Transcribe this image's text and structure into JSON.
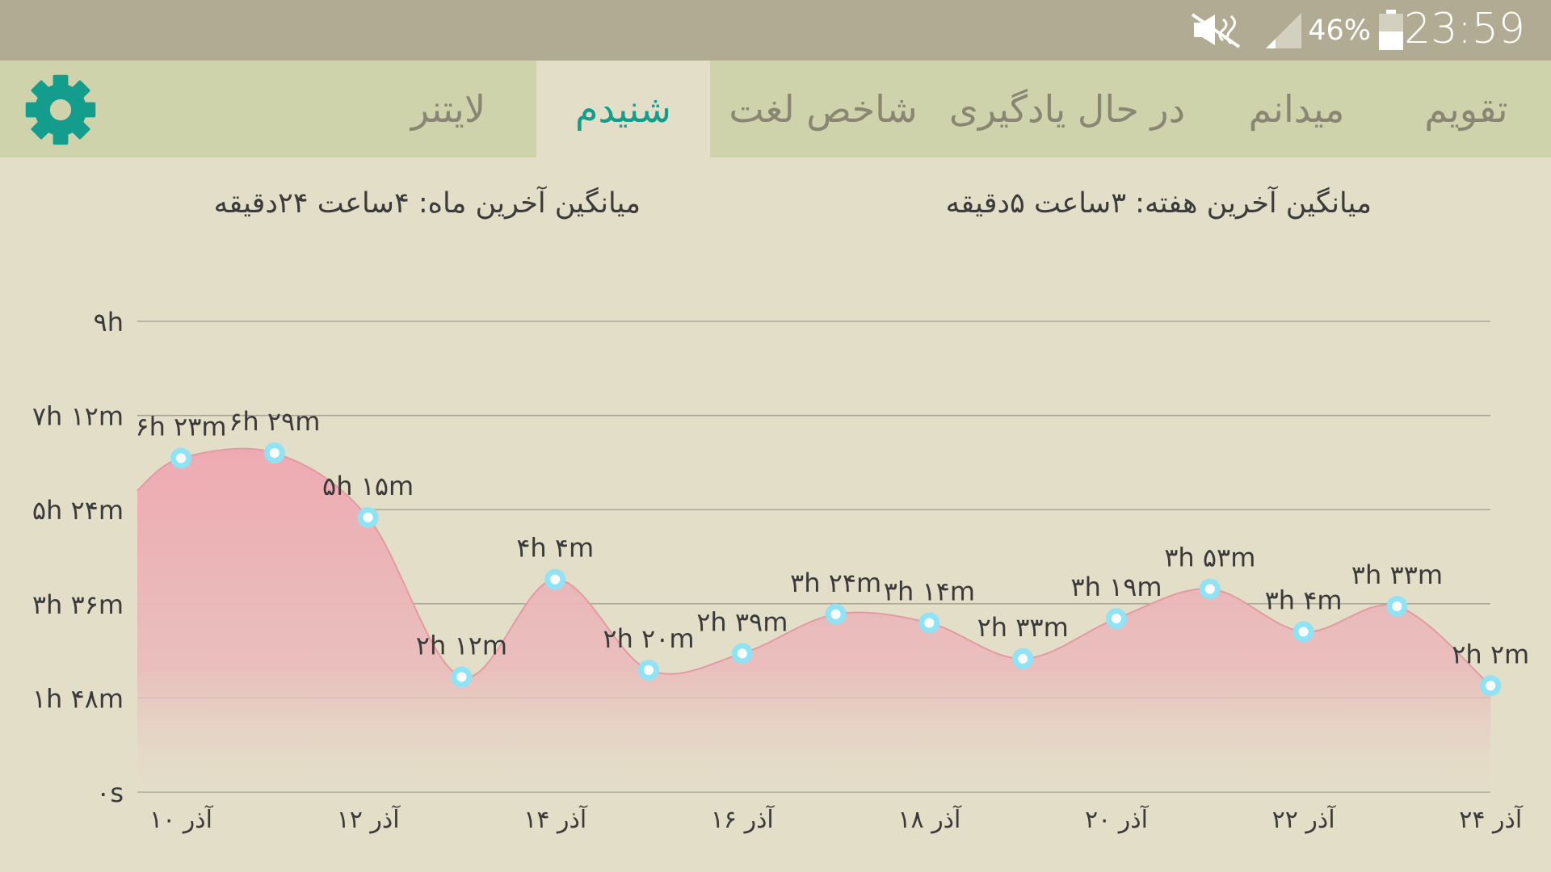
{
  "status_bar": {
    "time": "23:59",
    "battery_percent": "46%",
    "icons": [
      "mute-icon",
      "signal-icon",
      "battery-icon"
    ]
  },
  "tabs": [
    {
      "label": "تقویم",
      "active": false
    },
    {
      "label": "میدانم",
      "active": false
    },
    {
      "label": "در حال یادگیری",
      "active": false
    },
    {
      "label": "شاخص لغت",
      "active": false
    },
    {
      "label": "شنیدم",
      "active": true
    },
    {
      "label": "لایتنر",
      "active": false
    }
  ],
  "settings_icon": "gear-icon",
  "summary": {
    "week_average": "میانگین آخرین هفته: ۳ساعت ۵دقیقه",
    "month_average": "میانگین آخرین ماه: ۴ساعت ۲۴دقیقه"
  },
  "colors": {
    "accent": "#149c8c",
    "area_fill": "#eeaab2",
    "point_ring": "#8fe3f5"
  },
  "chart_data": {
    "type": "area",
    "y_ticks": [
      {
        "minutes": 0,
        "label": "۰s"
      },
      {
        "minutes": 108,
        "label": "۱h ۴۸m"
      },
      {
        "minutes": 216,
        "label": "۳h ۳۶m"
      },
      {
        "minutes": 324,
        "label": "۵h ۲۴m"
      },
      {
        "minutes": 432,
        "label": "۷h ۱۲m"
      },
      {
        "minutes": 540,
        "label": "۹h"
      }
    ],
    "ylim": [
      0,
      540
    ],
    "x_tick_labels": [
      "۱۰ آذر",
      "۱۲ آذر",
      "۱۴ آذر",
      "۱۶ آذر",
      "۱۸ آذر",
      "۲۰ آذر",
      "۲۲ آذر",
      "۲۴ آذر"
    ],
    "points": [
      {
        "minutes": 383,
        "label": "۶h ۲۳m"
      },
      {
        "minutes": 389,
        "label": "۶h ۲۹m"
      },
      {
        "minutes": 315,
        "label": "۵h ۱۵m"
      },
      {
        "minutes": 132,
        "label": "۲h ۱۲m"
      },
      {
        "minutes": 244,
        "label": "۴h ۴m"
      },
      {
        "minutes": 140,
        "label": "۲h ۲۰m"
      },
      {
        "minutes": 159,
        "label": "۲h ۳۹m"
      },
      {
        "minutes": 204,
        "label": "۳h ۲۴m"
      },
      {
        "minutes": 194,
        "label": "۳h ۱۴m"
      },
      {
        "minutes": 153,
        "label": "۲h ۳۳m"
      },
      {
        "minutes": 199,
        "label": "۳h ۱۹m"
      },
      {
        "minutes": 233,
        "label": "۳h ۵۳m"
      },
      {
        "minutes": 184,
        "label": "۳h ۴m"
      },
      {
        "minutes": 213,
        "label": "۳h ۳۳m"
      },
      {
        "minutes": 122,
        "label": "۲h ۲m"
      }
    ]
  }
}
